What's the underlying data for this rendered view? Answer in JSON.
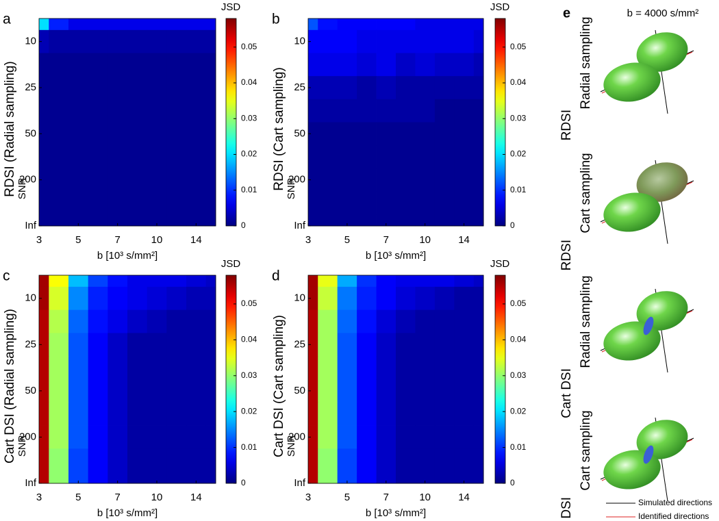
{
  "chart_data": [
    {
      "type": "contour",
      "panel": "a",
      "ylabel": "RDSI (Radial sampling)",
      "ylabel_sub": "SNR",
      "xlabel": "b [10³ s/mm²]",
      "categories": [
        "3",
        null,
        "5",
        null,
        "7",
        null,
        "10",
        null,
        "14",
        null
      ],
      "y_categories": [
        null,
        "10",
        null,
        "25",
        null,
        "50",
        null,
        "200",
        null,
        "Inf"
      ],
      "colormap": "jet",
      "colorbar": {
        "label": "JSD",
        "lim": [
          0,
          0.058
        ],
        "ticks": [
          0,
          0.01,
          0.02,
          0.03,
          0.04,
          0.05
        ]
      },
      "z": [
        [
          0.02,
          0.009,
          0.006,
          0.006,
          0.006,
          0.006,
          0.006,
          0.006,
          0.006,
          0.006
        ],
        [
          0.003,
          0.002,
          0.002,
          0.002,
          0.002,
          0.002,
          0.002,
          0.002,
          0.002,
          0.002
        ],
        [
          0.001,
          0.001,
          0.001,
          0.001,
          0.001,
          0.001,
          0.001,
          0.001,
          0.001,
          0.001
        ],
        [
          0.001,
          0.001,
          0.001,
          0.001,
          0.001,
          0.001,
          0.001,
          0.001,
          0.001,
          0.001
        ],
        [
          0.001,
          0.001,
          0.001,
          0.001,
          0.001,
          0.001,
          0.001,
          0.001,
          0.001,
          0.001
        ],
        [
          0.001,
          0.001,
          0.001,
          0.001,
          0.001,
          0.001,
          0.001,
          0.001,
          0.001,
          0.001
        ],
        [
          0.001,
          0.001,
          0.001,
          0.001,
          0.001,
          0.001,
          0.001,
          0.001,
          0.001,
          0.001
        ],
        [
          0.001,
          0.001,
          0.001,
          0.001,
          0.001,
          0.001,
          0.001,
          0.001,
          0.001,
          0.001
        ],
        [
          0.001,
          0.001,
          0.001,
          0.001,
          0.001,
          0.001,
          0.001,
          0.001,
          0.001,
          0.001
        ],
        [
          0.001,
          0.001,
          0.001,
          0.001,
          0.001,
          0.001,
          0.001,
          0.001,
          0.001,
          0.001
        ]
      ]
    },
    {
      "type": "contour",
      "panel": "b",
      "ylabel": "RDSI (Cart sampling)",
      "ylabel_sub": "SNR",
      "xlabel": "b [10³ s/mm²]",
      "categories": [
        "3",
        null,
        "5",
        null,
        "7",
        null,
        "10",
        null,
        "14",
        null
      ],
      "y_categories": [
        null,
        "10",
        null,
        "25",
        null,
        "50",
        null,
        "200",
        null,
        "Inf"
      ],
      "colormap": "jet",
      "colorbar": {
        "label": "JSD",
        "lim": [
          0,
          0.058
        ],
        "ticks": [
          0,
          0.01,
          0.02,
          0.03,
          0.04,
          0.05
        ]
      },
      "z": [
        [
          0.012,
          0.008,
          0.007,
          0.007,
          0.007,
          0.007,
          0.006,
          0.006,
          0.006,
          0.006
        ],
        [
          0.007,
          0.007,
          0.007,
          0.006,
          0.006,
          0.006,
          0.006,
          0.006,
          0.006,
          0.005
        ],
        [
          0.006,
          0.006,
          0.006,
          0.005,
          0.006,
          0.004,
          0.005,
          0.004,
          0.004,
          0.003
        ],
        [
          0.003,
          0.003,
          0.003,
          0.002,
          0.003,
          0.002,
          0.002,
          0.002,
          0.002,
          0.002
        ],
        [
          0.002,
          0.002,
          0.002,
          0.002,
          0.002,
          0.002,
          0.002,
          0.001,
          0.001,
          0.001
        ],
        [
          0.001,
          0.001,
          0.001,
          0.001,
          0.001,
          0.001,
          0.001,
          0.001,
          0.001,
          0.001
        ],
        [
          0.001,
          0.001,
          0.001,
          0.001,
          0.001,
          0.001,
          0.001,
          0.001,
          0.001,
          0.001
        ],
        [
          0.001,
          0.001,
          0.001,
          0.001,
          0.001,
          0.001,
          0.001,
          0.001,
          0.001,
          0.001
        ],
        [
          0.001,
          0.001,
          0.001,
          0.001,
          0.001,
          0.001,
          0.001,
          0.001,
          0.001,
          0.001
        ],
        [
          0.001,
          0.001,
          0.001,
          0.001,
          0.001,
          0.001,
          0.001,
          0.001,
          0.001,
          0.001
        ]
      ]
    },
    {
      "type": "contour",
      "panel": "c",
      "ylabel": "Cart DSI (Radial sampling)",
      "ylabel_sub": "SNR",
      "xlabel": "b [10³ s/mm²]",
      "categories": [
        "3",
        null,
        "5",
        null,
        "7",
        null,
        "10",
        null,
        "14",
        null
      ],
      "y_categories": [
        null,
        "10",
        null,
        "25",
        null,
        "50",
        null,
        "200",
        null,
        "Inf"
      ],
      "colormap": "jet",
      "colorbar": {
        "label": "JSD",
        "lim": [
          0,
          0.058
        ],
        "ticks": [
          0,
          0.01,
          0.02,
          0.03,
          0.04,
          0.05
        ]
      },
      "z": [
        [
          0.056,
          0.036,
          0.018,
          0.011,
          0.008,
          0.006,
          0.006,
          0.006,
          0.005,
          0.004
        ],
        [
          0.056,
          0.034,
          0.015,
          0.009,
          0.007,
          0.006,
          0.005,
          0.004,
          0.003,
          0.003
        ],
        [
          0.055,
          0.032,
          0.013,
          0.008,
          0.006,
          0.004,
          0.003,
          0.002,
          0.002,
          0.002
        ],
        [
          0.055,
          0.031,
          0.012,
          0.007,
          0.004,
          0.002,
          0.002,
          0.002,
          0.002,
          0.002
        ],
        [
          0.055,
          0.031,
          0.012,
          0.007,
          0.004,
          0.002,
          0.002,
          0.002,
          0.002,
          0.002
        ],
        [
          0.055,
          0.031,
          0.012,
          0.007,
          0.004,
          0.002,
          0.002,
          0.002,
          0.002,
          0.002
        ],
        [
          0.055,
          0.031,
          0.012,
          0.007,
          0.004,
          0.002,
          0.002,
          0.002,
          0.002,
          0.002
        ],
        [
          0.055,
          0.031,
          0.012,
          0.007,
          0.004,
          0.002,
          0.002,
          0.002,
          0.002,
          0.002
        ],
        [
          0.055,
          0.03,
          0.011,
          0.007,
          0.004,
          0.002,
          0.002,
          0.002,
          0.002,
          0.002
        ],
        [
          0.055,
          0.03,
          0.011,
          0.007,
          0.004,
          0.002,
          0.002,
          0.002,
          0.002,
          0.002
        ]
      ]
    },
    {
      "type": "contour",
      "panel": "d",
      "ylabel": "Cart DSI (Cart sampling)",
      "ylabel_sub": "SNR",
      "xlabel": "b [10³ s/mm²]",
      "categories": [
        "3",
        null,
        "5",
        null,
        "7",
        null,
        "10",
        null,
        "14",
        null
      ],
      "y_categories": [
        null,
        "10",
        null,
        "25",
        null,
        "50",
        null,
        "200",
        null,
        "Inf"
      ],
      "colormap": "jet",
      "colorbar": {
        "label": "JSD",
        "lim": [
          0,
          0.058
        ],
        "ticks": [
          0,
          0.01,
          0.02,
          0.03,
          0.04,
          0.05
        ]
      },
      "z": [
        [
          0.056,
          0.035,
          0.017,
          0.01,
          0.007,
          0.006,
          0.006,
          0.006,
          0.005,
          0.004
        ],
        [
          0.056,
          0.033,
          0.014,
          0.009,
          0.007,
          0.005,
          0.004,
          0.003,
          0.002,
          0.002
        ],
        [
          0.055,
          0.031,
          0.013,
          0.008,
          0.005,
          0.003,
          0.002,
          0.002,
          0.002,
          0.002
        ],
        [
          0.055,
          0.031,
          0.012,
          0.007,
          0.004,
          0.002,
          0.002,
          0.002,
          0.002,
          0.002
        ],
        [
          0.055,
          0.031,
          0.012,
          0.007,
          0.004,
          0.002,
          0.002,
          0.002,
          0.002,
          0.002
        ],
        [
          0.055,
          0.031,
          0.012,
          0.007,
          0.004,
          0.002,
          0.002,
          0.002,
          0.002,
          0.002
        ],
        [
          0.055,
          0.031,
          0.012,
          0.007,
          0.004,
          0.002,
          0.002,
          0.002,
          0.002,
          0.002
        ],
        [
          0.055,
          0.031,
          0.012,
          0.007,
          0.004,
          0.002,
          0.002,
          0.002,
          0.002,
          0.002
        ],
        [
          0.055,
          0.03,
          0.011,
          0.007,
          0.004,
          0.002,
          0.002,
          0.002,
          0.002,
          0.002
        ],
        [
          0.055,
          0.03,
          0.011,
          0.007,
          0.004,
          0.002,
          0.002,
          0.002,
          0.002,
          0.002
        ]
      ]
    }
  ],
  "glyph_panel": {
    "label": "e",
    "title": "b = 4000 s/mm²",
    "rows": [
      [
        "RDSI",
        "Radial sampling"
      ],
      [
        "RDSI",
        "Cart sampling"
      ],
      [
        "Cart DSI",
        "Radial sampling"
      ],
      [
        "Cart DSI",
        "Cart sampling"
      ]
    ],
    "legend": [
      "Simulated directions",
      "Identified directions"
    ]
  }
}
